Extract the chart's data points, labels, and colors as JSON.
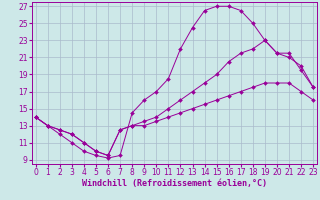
{
  "title": "",
  "xlabel": "Windchill (Refroidissement éolien,°C)",
  "background_color": "#cde8e8",
  "grid_color": "#aabbcc",
  "line_color": "#990099",
  "series": [
    {
      "x": [
        0,
        1,
        2,
        3,
        4,
        5,
        6,
        7,
        8,
        9,
        10,
        11,
        12,
        13,
        14,
        15,
        16,
        17,
        18,
        19,
        20,
        21,
        22,
        23
      ],
      "y": [
        14,
        13,
        12,
        11,
        10,
        9.5,
        9.2,
        9.5,
        14.5,
        16,
        17,
        18.5,
        22,
        24.5,
        26.5,
        27,
        27,
        26.5,
        25,
        23,
        21.5,
        21,
        20,
        17.5
      ]
    },
    {
      "x": [
        0,
        1,
        2,
        3,
        4,
        5,
        6,
        7,
        8,
        9,
        10,
        11,
        12,
        13,
        14,
        15,
        16,
        17,
        18,
        19,
        20,
        21,
        22,
        23
      ],
      "y": [
        14,
        13,
        12.5,
        12,
        11,
        10,
        9.5,
        12.5,
        13,
        13.5,
        14,
        15,
        16,
        17,
        18,
        19,
        20.5,
        21.5,
        22,
        23,
        21.5,
        21.5,
        19.5,
        17.5
      ]
    },
    {
      "x": [
        0,
        1,
        2,
        3,
        4,
        5,
        6,
        7,
        8,
        9,
        10,
        11,
        12,
        13,
        14,
        15,
        16,
        17,
        18,
        19,
        20,
        21,
        22,
        23
      ],
      "y": [
        14,
        13,
        12.5,
        12,
        11,
        10,
        9.5,
        12.5,
        13,
        13,
        13.5,
        14,
        14.5,
        15,
        15.5,
        16,
        16.5,
        17,
        17.5,
        18,
        18,
        18,
        17,
        16
      ]
    }
  ],
  "ylim": [
    8.5,
    27.5
  ],
  "xlim": [
    -0.3,
    23.3
  ],
  "yticks": [
    9,
    11,
    13,
    15,
    17,
    19,
    21,
    23,
    25,
    27
  ],
  "xticks": [
    0,
    1,
    2,
    3,
    4,
    5,
    6,
    7,
    8,
    9,
    10,
    11,
    12,
    13,
    14,
    15,
    16,
    17,
    18,
    19,
    20,
    21,
    22,
    23
  ],
  "tick_fontsize": 5.5,
  "xlabel_fontsize": 6,
  "marker_size": 2.0
}
